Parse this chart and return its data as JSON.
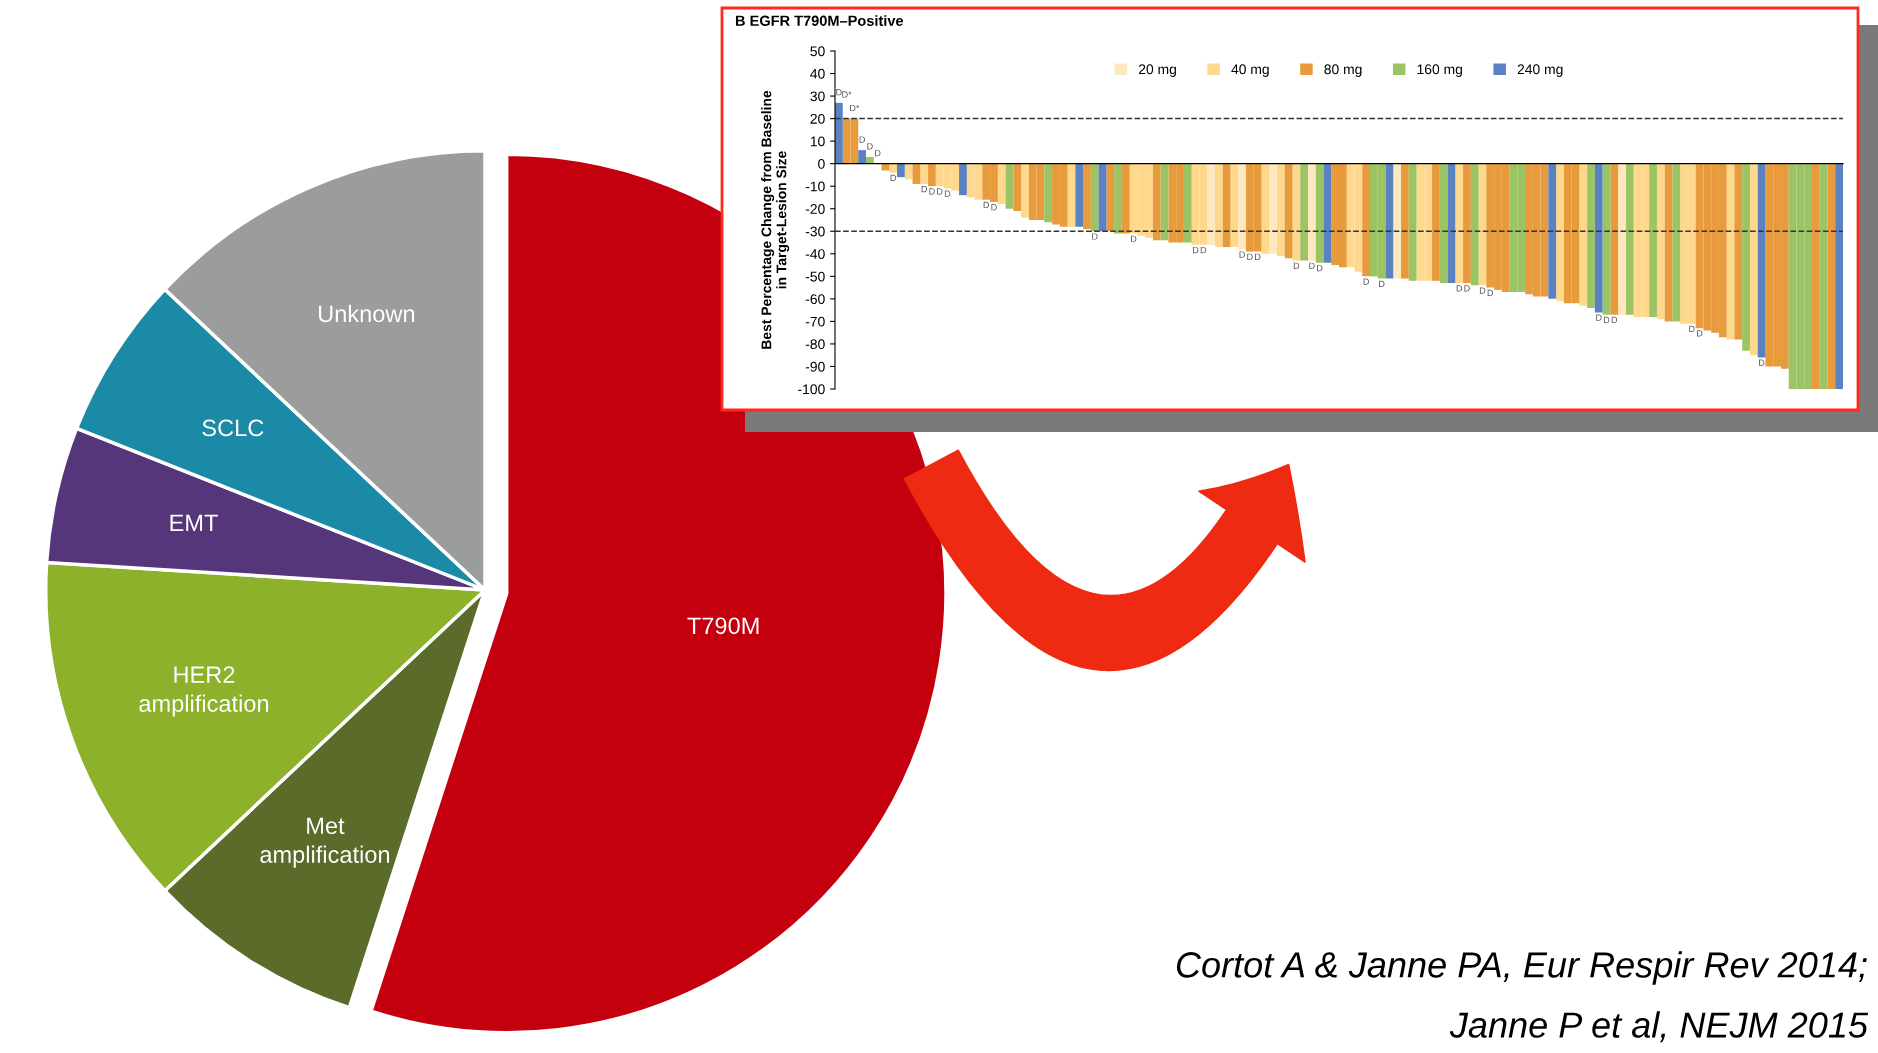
{
  "chart_data": [
    {
      "type": "pie",
      "categories": [
        "T790M",
        "Met\namplification",
        "HER2\namplification",
        "EMT",
        "SCLC",
        "Unknown"
      ],
      "values": [
        55,
        8,
        13,
        5,
        6,
        13
      ],
      "colors": [
        "#c4000f",
        "#5a6b2a",
        "#8db12a",
        "#55367a",
        "#1a8aa6",
        "#9b9c9c"
      ],
      "annotations": [
        "Cortot A & Janne PA, Eur Respir Rev 2014;",
        "Janne P et al, NEJM 2015"
      ]
    },
    {
      "type": "bar",
      "title": "B EGFR T790M–Positive",
      "ylabel": "Best Percentage Change from Baseline\nin Target-Lesion Size",
      "categories": [
        null,
        null,
        null,
        null,
        null,
        null,
        null,
        null,
        null,
        null,
        null,
        null,
        null,
        null,
        null,
        null,
        null,
        null,
        null,
        null,
        null,
        null,
        null,
        null,
        null,
        null,
        null,
        null,
        null,
        null,
        null,
        null,
        null,
        null,
        null,
        null,
        null,
        null,
        null,
        null,
        null,
        null,
        null,
        null,
        null,
        null,
        null,
        null,
        null,
        null,
        null,
        null,
        null,
        null,
        null,
        null,
        null,
        null,
        null,
        null,
        null,
        null,
        null,
        null,
        null,
        null,
        null,
        null,
        null,
        null,
        null,
        null,
        null,
        null,
        null,
        null,
        null,
        null,
        null,
        null,
        null,
        null,
        null,
        null,
        null,
        null,
        null,
        null,
        null,
        null,
        null,
        null,
        null,
        null,
        null,
        null,
        null,
        null,
        null,
        null,
        null,
        null,
        null,
        null,
        null,
        null,
        null,
        null,
        null,
        null,
        null,
        null,
        null,
        null,
        null,
        null,
        null,
        null,
        null,
        null,
        null,
        null,
        null,
        null,
        null,
        null,
        null,
        null,
        null,
        null
      ],
      "series": [
        {
          "name": "20 mg",
          "color": "#fde8bf",
          "values": [
            null,
            null,
            null,
            null,
            null,
            null,
            null,
            null,
            null,
            null,
            null,
            null,
            null,
            null,
            null,
            null,
            null,
            null,
            null,
            null,
            null,
            null,
            null,
            null,
            null,
            null,
            null,
            null,
            null,
            null,
            null,
            null,
            null,
            null,
            null,
            null,
            null,
            null,
            null,
            null,
            null,
            null,
            null,
            null,
            null,
            null,
            null,
            null,
            -36,
            null,
            null,
            null,
            -38,
            null,
            null,
            null,
            -40,
            null,
            null,
            null,
            null,
            -43,
            null,
            null,
            null,
            null,
            null,
            null,
            null,
            null,
            null,
            null,
            -51,
            null,
            null,
            null,
            null,
            null,
            null,
            null,
            null,
            null,
            null,
            null,
            null,
            null,
            null,
            null,
            null,
            null,
            null,
            null,
            null,
            null,
            null,
            null,
            null,
            null,
            null,
            null,
            null,
            -67,
            null,
            null,
            null,
            null,
            null,
            null,
            null,
            null,
            null,
            null,
            null,
            null,
            null,
            null,
            null,
            null,
            null,
            null,
            null,
            null,
            null,
            null,
            null,
            null,
            null,
            null,
            null,
            null
          ],
          "value_labels": [
            null,
            null,
            null,
            null,
            null,
            null,
            null,
            null,
            null,
            null,
            null,
            null,
            null,
            null,
            null,
            null,
            null,
            null,
            null,
            null,
            null,
            null,
            null,
            null,
            null,
            null,
            null,
            null,
            null,
            null,
            null,
            null,
            null,
            null,
            null,
            null,
            null,
            null,
            null,
            null,
            null,
            null,
            null,
            null,
            null,
            null,
            null,
            null,
            null,
            null,
            null,
            null,
            "D",
            null,
            null,
            null,
            null,
            null,
            null,
            null,
            null,
            "D",
            null,
            null,
            null,
            null,
            null,
            null,
            null,
            null,
            null,
            null,
            null,
            null,
            null,
            null,
            null,
            null,
            null,
            null,
            null,
            null,
            null,
            null,
            null,
            null,
            null,
            null,
            null,
            null,
            null,
            null,
            null,
            null,
            null,
            null,
            null,
            null,
            null,
            null,
            null,
            null,
            null,
            null,
            null,
            null,
            null,
            null,
            null,
            null,
            null,
            null,
            null,
            null,
            null,
            null,
            null,
            null,
            null,
            null,
            null,
            null,
            null,
            null,
            null,
            null,
            null,
            null,
            null,
            null
          ]
        },
        {
          "name": "40 mg",
          "color": "#fdd88d",
          "values": [
            null,
            null,
            null,
            null,
            null,
            0,
            null,
            -4,
            null,
            -7,
            null,
            -9,
            null,
            -10,
            -11,
            -12,
            null,
            -15,
            -16,
            null,
            null,
            -18,
            null,
            null,
            -24,
            null,
            null,
            null,
            null,
            null,
            -28,
            null,
            null,
            null,
            null,
            null,
            null,
            null,
            -31,
            -32,
            -33,
            null,
            null,
            null,
            null,
            null,
            -36,
            -36,
            null,
            -37,
            null,
            -37,
            null,
            null,
            null,
            -40,
            null,
            -41,
            null,
            -43,
            null,
            null,
            null,
            null,
            null,
            null,
            -46,
            -48,
            null,
            null,
            null,
            null,
            null,
            null,
            null,
            -52,
            -52,
            null,
            null,
            null,
            -53,
            null,
            null,
            -54,
            null,
            null,
            null,
            null,
            null,
            null,
            null,
            null,
            null,
            -61,
            null,
            null,
            -63,
            null,
            null,
            null,
            null,
            null,
            null,
            -68,
            -68,
            null,
            -69,
            null,
            null,
            -71,
            -71,
            null,
            null,
            null,
            null,
            -78,
            null,
            null,
            -85,
            null,
            null,
            null,
            null,
            null,
            null,
            null,
            null,
            null,
            null,
            null
          ],
          "value_labels": [
            null,
            null,
            null,
            null,
            null,
            "D",
            null,
            "D",
            null,
            null,
            null,
            "D",
            null,
            "D",
            "D",
            null,
            null,
            null,
            null,
            null,
            null,
            null,
            null,
            null,
            null,
            null,
            null,
            null,
            null,
            null,
            null,
            null,
            null,
            null,
            null,
            null,
            null,
            null,
            "D",
            null,
            null,
            null,
            null,
            null,
            null,
            null,
            "D",
            "D",
            null,
            null,
            null,
            null,
            null,
            null,
            null,
            null,
            null,
            null,
            null,
            "D",
            null,
            null,
            null,
            null,
            null,
            null,
            null,
            null,
            null,
            null,
            null,
            null,
            null,
            null,
            null,
            null,
            null,
            null,
            null,
            null,
            "D",
            null,
            null,
            "D",
            null,
            null,
            null,
            null,
            null,
            null,
            null,
            null,
            null,
            null,
            null,
            null,
            null,
            null,
            null,
            null,
            null,
            null,
            null,
            null,
            null,
            null,
            null,
            null,
            null,
            null,
            "D",
            null,
            null,
            null,
            null,
            null,
            null,
            null,
            null,
            null,
            null,
            null,
            null,
            null,
            null,
            null,
            null,
            null,
            null,
            null
          ]
        },
        {
          "name": "80 mg",
          "color": "#e89b3c",
          "values": [
            null,
            20,
            20,
            null,
            null,
            null,
            -3,
            null,
            null,
            null,
            -9,
            null,
            -10,
            null,
            null,
            null,
            null,
            null,
            null,
            -16,
            -17,
            null,
            null,
            -21,
            null,
            -25,
            -25,
            null,
            -27,
            -28,
            null,
            null,
            -29,
            null,
            null,
            -30,
            null,
            -31,
            null,
            null,
            null,
            -34,
            null,
            -35,
            -35,
            null,
            null,
            null,
            null,
            null,
            -37,
            null,
            null,
            -39,
            -39,
            null,
            null,
            null,
            -42,
            null,
            null,
            null,
            null,
            null,
            -45,
            -46,
            null,
            null,
            -50,
            null,
            null,
            null,
            null,
            -51,
            null,
            null,
            null,
            -52,
            null,
            null,
            null,
            -53,
            null,
            null,
            -55,
            -56,
            -57,
            null,
            null,
            -58,
            -59,
            -59,
            null,
            null,
            -62,
            -62,
            null,
            null,
            null,
            null,
            -67,
            null,
            null,
            null,
            null,
            null,
            null,
            -70,
            null,
            null,
            null,
            -73,
            -74,
            -75,
            -77,
            null,
            -78,
            null,
            null,
            null,
            -90,
            -90,
            -91,
            null,
            null,
            null,
            -100,
            null,
            -100,
            null
          ],
          "value_labels": [
            null,
            "D*",
            "D*",
            null,
            null,
            null,
            null,
            null,
            null,
            null,
            null,
            null,
            "D",
            null,
            null,
            null,
            null,
            null,
            null,
            "D",
            "D",
            null,
            null,
            null,
            null,
            null,
            null,
            null,
            null,
            null,
            null,
            null,
            null,
            null,
            null,
            null,
            null,
            null,
            null,
            null,
            null,
            null,
            null,
            null,
            null,
            null,
            null,
            null,
            null,
            null,
            null,
            null,
            null,
            "D",
            "D",
            null,
            null,
            null,
            null,
            null,
            null,
            null,
            null,
            null,
            null,
            null,
            null,
            null,
            "D",
            null,
            null,
            null,
            null,
            null,
            null,
            null,
            null,
            null,
            null,
            null,
            null,
            "D",
            null,
            null,
            "D",
            null,
            null,
            null,
            null,
            null,
            null,
            null,
            null,
            null,
            null,
            null,
            null,
            null,
            null,
            null,
            "D",
            null,
            null,
            null,
            null,
            null,
            null,
            null,
            null,
            null,
            null,
            "D",
            null,
            null,
            null,
            null,
            null,
            null,
            null,
            null,
            null,
            null,
            null,
            null,
            null,
            null,
            null,
            null,
            null,
            null
          ]
        },
        {
          "name": "160 mg",
          "color": "#9cc464",
          "values": [
            null,
            null,
            null,
            null,
            3,
            null,
            null,
            null,
            null,
            null,
            null,
            null,
            null,
            null,
            null,
            null,
            null,
            null,
            null,
            null,
            null,
            null,
            -20,
            null,
            null,
            null,
            null,
            -26,
            null,
            null,
            null,
            null,
            null,
            -30,
            null,
            null,
            -31,
            null,
            null,
            null,
            null,
            null,
            -34,
            null,
            null,
            -35,
            null,
            null,
            null,
            null,
            null,
            null,
            null,
            null,
            null,
            null,
            null,
            null,
            null,
            null,
            -43,
            null,
            -44,
            null,
            null,
            null,
            null,
            null,
            null,
            -50,
            -51,
            null,
            null,
            null,
            -52,
            null,
            null,
            null,
            -53,
            null,
            null,
            null,
            -54,
            null,
            null,
            null,
            null,
            -57,
            -57,
            null,
            null,
            null,
            null,
            null,
            null,
            null,
            null,
            -64,
            null,
            -67,
            null,
            null,
            -67,
            null,
            null,
            -68,
            null,
            null,
            -70,
            null,
            null,
            null,
            null,
            null,
            null,
            null,
            null,
            -83,
            null,
            null,
            null,
            null,
            null,
            -100,
            -100,
            -100,
            null,
            -100,
            null,
            null
          ],
          "value_labels": [
            null,
            null,
            null,
            null,
            "D",
            null,
            null,
            null,
            null,
            null,
            null,
            null,
            null,
            null,
            null,
            null,
            null,
            null,
            null,
            null,
            null,
            null,
            null,
            null,
            null,
            null,
            null,
            null,
            null,
            null,
            null,
            null,
            null,
            "D",
            null,
            null,
            null,
            null,
            null,
            null,
            null,
            null,
            null,
            null,
            null,
            null,
            null,
            null,
            null,
            null,
            null,
            null,
            null,
            null,
            null,
            null,
            null,
            null,
            null,
            null,
            null,
            null,
            "D",
            null,
            null,
            null,
            null,
            null,
            null,
            null,
            "D",
            null,
            null,
            null,
            null,
            null,
            null,
            null,
            null,
            null,
            null,
            null,
            null,
            null,
            null,
            null,
            null,
            null,
            null,
            null,
            null,
            null,
            null,
            null,
            null,
            null,
            null,
            null,
            null,
            "D",
            null,
            null,
            null,
            null,
            null,
            null,
            null,
            null,
            null,
            null,
            null,
            null,
            null,
            null,
            null,
            null,
            null,
            null,
            null,
            null,
            null,
            null,
            null,
            null,
            null,
            null,
            null,
            null,
            null,
            null
          ]
        },
        {
          "name": "240 mg",
          "color": "#5b82c0",
          "values": [
            27,
            null,
            null,
            6,
            null,
            null,
            null,
            null,
            -6,
            null,
            null,
            null,
            null,
            null,
            null,
            null,
            -14,
            null,
            null,
            null,
            null,
            null,
            null,
            null,
            null,
            null,
            null,
            null,
            null,
            null,
            null,
            -28,
            null,
            null,
            -30,
            null,
            null,
            null,
            null,
            null,
            null,
            null,
            null,
            null,
            null,
            null,
            null,
            null,
            null,
            null,
            null,
            null,
            null,
            null,
            null,
            null,
            null,
            null,
            null,
            null,
            null,
            null,
            null,
            -44,
            null,
            null,
            null,
            null,
            null,
            null,
            null,
            -51,
            null,
            null,
            null,
            null,
            null,
            null,
            null,
            -53,
            null,
            null,
            null,
            null,
            null,
            null,
            null,
            null,
            null,
            null,
            null,
            null,
            -60,
            null,
            null,
            null,
            null,
            null,
            -66,
            null,
            null,
            null,
            null,
            null,
            null,
            null,
            null,
            null,
            null,
            null,
            null,
            null,
            null,
            null,
            null,
            null,
            null,
            null,
            null,
            -86,
            null,
            null,
            null,
            null,
            null,
            null,
            null,
            null,
            null,
            -100
          ],
          "value_labels": [
            "D",
            null,
            null,
            "D",
            null,
            null,
            null,
            null,
            null,
            null,
            null,
            null,
            null,
            null,
            null,
            null,
            null,
            null,
            null,
            null,
            null,
            null,
            null,
            null,
            null,
            null,
            null,
            null,
            null,
            null,
            null,
            null,
            null,
            null,
            null,
            null,
            null,
            null,
            null,
            null,
            null,
            null,
            null,
            null,
            null,
            null,
            null,
            null,
            null,
            null,
            null,
            null,
            null,
            null,
            null,
            null,
            null,
            null,
            null,
            null,
            null,
            null,
            null,
            null,
            null,
            null,
            null,
            null,
            null,
            null,
            null,
            null,
            null,
            null,
            null,
            null,
            null,
            null,
            null,
            null,
            null,
            null,
            null,
            null,
            null,
            null,
            null,
            null,
            null,
            null,
            null,
            null,
            null,
            null,
            null,
            null,
            null,
            null,
            "D",
            null,
            null,
            null,
            null,
            null,
            null,
            null,
            null,
            null,
            null,
            null,
            null,
            null,
            null,
            null,
            null,
            null,
            null,
            null,
            null,
            "D",
            null,
            null,
            null,
            null,
            null,
            null,
            null,
            null,
            null,
            null
          ]
        }
      ],
      "ylim": [
        -100,
        50
      ],
      "yticks": [
        -100,
        -90,
        -80,
        -70,
        -60,
        -50,
        -40,
        -30,
        -20,
        -10,
        0,
        10,
        20,
        30,
        40,
        50
      ],
      "ref_lines": [
        {
          "axis": "y",
          "value": 20,
          "color": "#333333",
          "line_style": "dashed"
        },
        {
          "axis": "y",
          "value": -30,
          "color": "#333333",
          "line_style": "dashed"
        }
      ],
      "legend": "top",
      "tick_labels": "y"
    }
  ]
}
